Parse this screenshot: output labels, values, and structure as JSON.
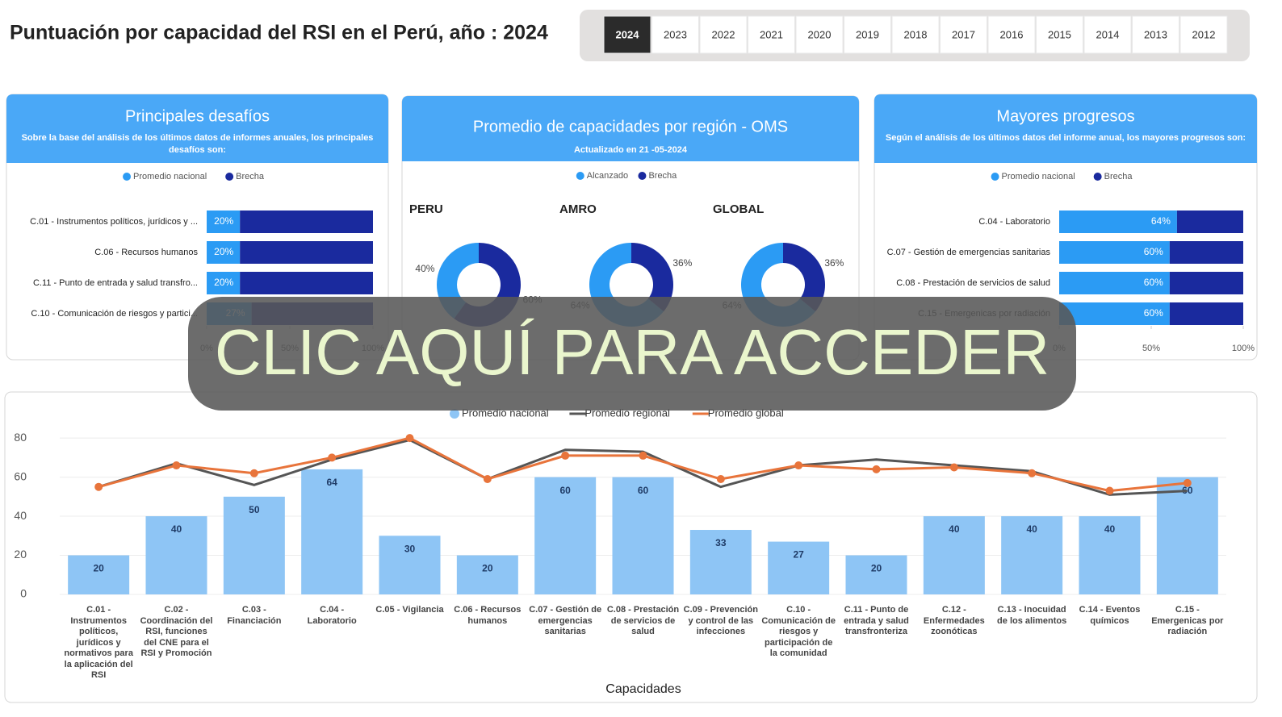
{
  "header": {
    "title": "Puntuación por capacidad del RSI en el Perú, año :  2024",
    "tabs": [
      "2024",
      "2023",
      "2022",
      "2021",
      "2020",
      "2019",
      "2018",
      "2017",
      "2016",
      "2015",
      "2014",
      "2013",
      "2012"
    ]
  },
  "overlay": {
    "text": "CLIC AQUÍ PARA ACCEDER"
  },
  "chart_data": [
    {
      "type": "hbar",
      "title": "Principales desafíos",
      "subtitle": "Sobre la base del análisis de los últimos datos de informes anuales, los principales desafíos son:",
      "categories": [
        "C.01 - Instrumentos políticos, jurídicos y ...",
        "C.06 - Recursos humanos",
        "C.11 - Punto de entrada y salud transfro...",
        "C.10 - Comunicación de riesgos y partici..."
      ],
      "series": [
        {
          "name": "Promedio nacional",
          "color": "#2b9bf4",
          "values": [
            20,
            20,
            20,
            27
          ],
          "value_labels": [
            "20%",
            "20%",
            "20%",
            "27%"
          ]
        },
        {
          "name": "Brecha",
          "color": "#1a2a9e",
          "values": [
            80,
            80,
            80,
            73
          ]
        }
      ],
      "xlim": [
        0,
        100
      ],
      "xticks": [
        {
          "value": 0,
          "label": "0%"
        },
        {
          "value": 50,
          "label": "50%"
        },
        {
          "value": 100,
          "label": "100%"
        }
      ]
    },
    {
      "type": "donut",
      "title": "Promedio de capacidades por región - OMS",
      "subtitle": "Actualizado en 21 -05-2024",
      "series": [
        {
          "name": "Alcanzado",
          "color": "#2b9bf4"
        },
        {
          "name": "Brecha",
          "color": "#1a2a9e"
        }
      ],
      "pies": [
        {
          "label": "PERU",
          "values": [
            40,
            60
          ],
          "value_labels": [
            "40%",
            "60%"
          ]
        },
        {
          "label": "AMRO",
          "values": [
            64,
            36
          ],
          "value_labels": [
            "64%",
            "36%"
          ]
        },
        {
          "label": "GLOBAL",
          "values": [
            64,
            36
          ],
          "value_labels": [
            "64%",
            "36%"
          ]
        }
      ]
    },
    {
      "type": "hbar",
      "title": "Mayores progresos",
      "subtitle": "Según el análisis de los últimos datos del informe anual, los mayores progresos son:",
      "categories": [
        "C.04 - Laboratorio",
        "C.07 - Gestión de emergencias sanitarias",
        "C.08 - Prestación de servicios de salud",
        "C.15 - Emergenicas por radiación"
      ],
      "series": [
        {
          "name": "Promedio nacional",
          "color": "#2b9bf4",
          "values": [
            64,
            60,
            60,
            60
          ],
          "value_labels": [
            "64%",
            "60%",
            "60%",
            "60%"
          ]
        },
        {
          "name": "Brecha",
          "color": "#1a2a9e",
          "values": [
            36,
            40,
            40,
            40
          ]
        }
      ],
      "xlim": [
        0,
        100
      ],
      "xticks": [
        {
          "value": 0,
          "label": "0%"
        },
        {
          "value": 50,
          "label": "50%"
        },
        {
          "value": 100,
          "label": "100%"
        }
      ]
    },
    {
      "type": "combo",
      "xlabel": "Capacidades",
      "categories": [
        "C.01 - Instrumentos políticos, jurídicos y normativos para la aplicación del RSI",
        "C.02 - Coordinación del RSI, funciones del CNE para el RSI y Promoción",
        "C.03 - Financiación",
        "C.04 - Laboratorio",
        "C.05 - Vigilancia",
        "C.06 - Recursos humanos",
        "C.07 - Gestión de emergencias sanitarias",
        "C.08 - Prestación de servicios de salud",
        "C.09 - Prevención y control de las infecciones",
        "C.10 - Comunicación de riesgos y participación de la comunidad",
        "C.11 - Punto de entrada y salud transfronteriza",
        "C.12 - Enfermedades zoonóticas",
        "C.13 - Inocuidad de los alimentos",
        "C.14 - Eventos químicos",
        "C.15 - Emergenicas por radiación"
      ],
      "series": [
        {
          "name": "Promedio nacional",
          "type": "bar",
          "color": "#8ec5f5",
          "values": [
            20,
            40,
            50,
            64,
            30,
            20,
            60,
            60,
            33,
            27,
            20,
            40,
            40,
            40,
            60
          ]
        },
        {
          "name": "Promedio regional",
          "type": "line",
          "color": "#555555",
          "values": [
            55,
            67,
            56,
            69,
            79,
            59,
            74,
            73,
            55,
            66,
            69,
            66,
            63,
            51,
            53
          ]
        },
        {
          "name": "Promedio global",
          "type": "line",
          "color": "#e8743b",
          "markers": true,
          "values": [
            55,
            66,
            62,
            70,
            80,
            59,
            71,
            71,
            59,
            66,
            64,
            65,
            62,
            53,
            57
          ]
        }
      ],
      "ylim": [
        0,
        85
      ],
      "yticks": [
        0,
        20,
        40,
        60,
        80
      ],
      "grid": true
    }
  ]
}
